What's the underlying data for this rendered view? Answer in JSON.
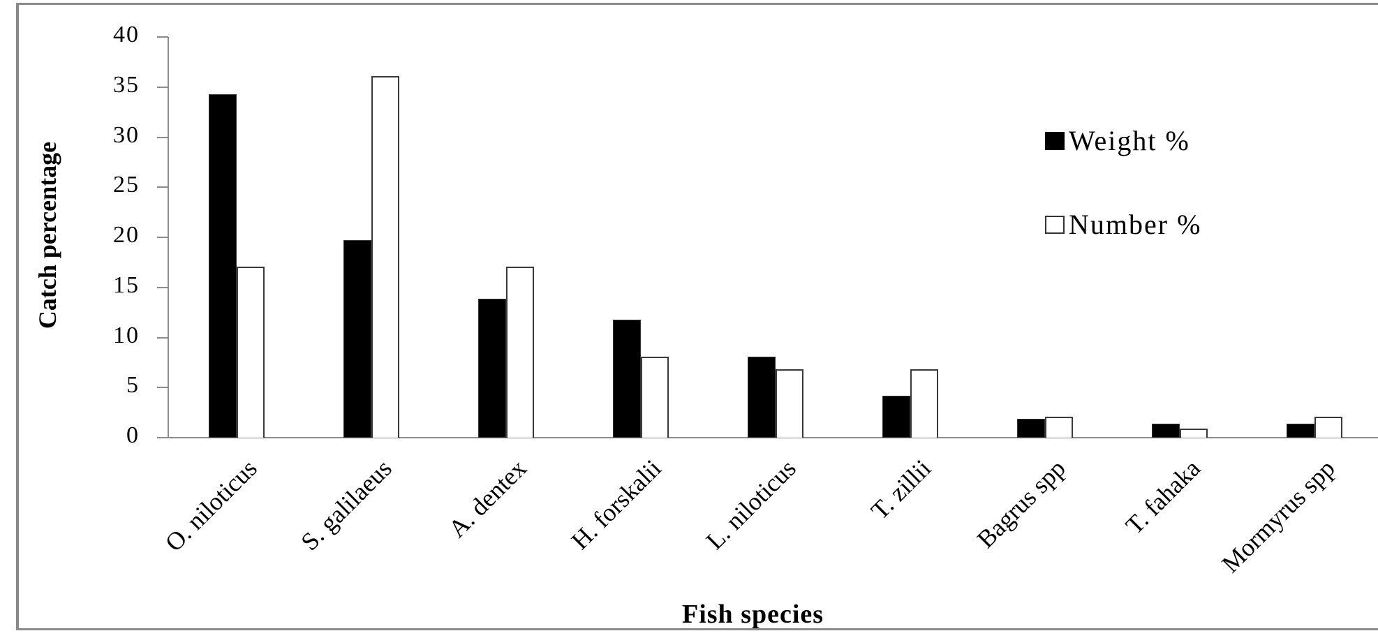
{
  "chart_data": {
    "type": "bar",
    "title": "",
    "xlabel": "Fish species",
    "ylabel": "Catch percentage",
    "ylim": [
      0,
      40
    ],
    "yticks": [
      0,
      5,
      10,
      15,
      20,
      25,
      30,
      35,
      40
    ],
    "grid": false,
    "legend_position": "upper right",
    "categories": [
      "O. niloticus",
      "S. galilaeus",
      "A. dentex",
      "H. forskalii",
      "L. niloticus",
      "T. zillii",
      "Bagrus spp",
      "T. fahaka",
      "Mormyrus spp"
    ],
    "series": [
      {
        "name": "Weight %",
        "color": "#000000",
        "values": [
          34.3,
          19.7,
          13.9,
          11.8,
          8.1,
          4.2,
          1.9,
          1.4,
          1.4
        ]
      },
      {
        "name": "Number %",
        "color": "#ffffff",
        "values": [
          17.1,
          36.1,
          17.1,
          8.1,
          6.8,
          6.8,
          2.1,
          0.9,
          2.1
        ]
      }
    ]
  },
  "axis": {
    "ytick_labels": [
      "0",
      "5",
      "10",
      "15",
      "20",
      "25",
      "30",
      "35",
      "40"
    ]
  },
  "legend": {
    "weight_label": "Weight %",
    "number_label": "Number %"
  }
}
